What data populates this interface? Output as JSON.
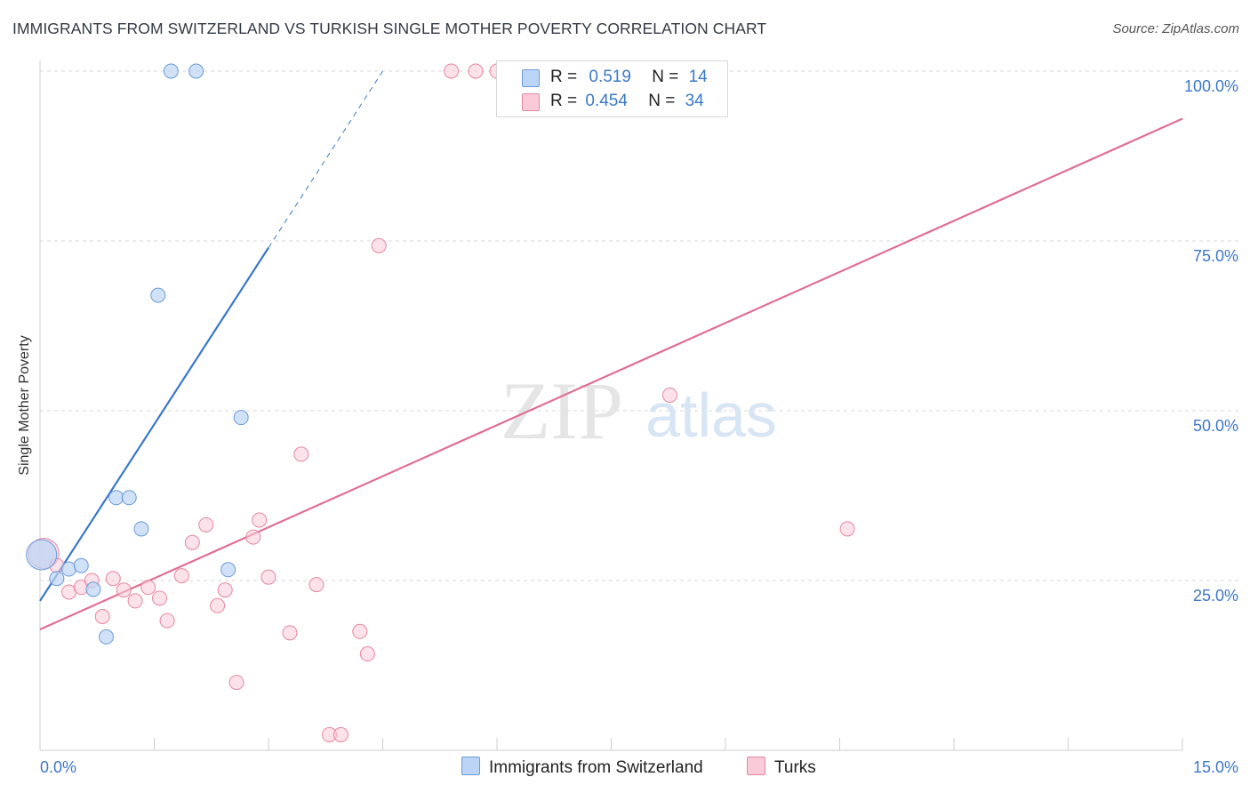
{
  "header": {
    "title": "IMMIGRANTS FROM SWITZERLAND VS TURKISH SINGLE MOTHER POVERTY CORRELATION CHART",
    "source": "Source: ZipAtlas.com"
  },
  "legend": {
    "rows": [
      {
        "r_label": "R =",
        "r_value": "0.519",
        "n_label": "N =",
        "n_value": "14"
      },
      {
        "r_label": "R =",
        "r_value": "0.454",
        "n_label": "N =",
        "n_value": "34"
      }
    ]
  },
  "bottom_legend": {
    "items": [
      {
        "label": "Immigrants from Switzerland"
      },
      {
        "label": "Turks"
      }
    ]
  },
  "colors": {
    "swiss_fill": "#bcd4f5",
    "swiss_stroke": "#6a9bd8",
    "swiss_line": "#3a78c8",
    "turks_fill": "#f9cad8",
    "turks_stroke": "#e8869f",
    "turks_line": "#e06f94",
    "axis_text": "#3c78c8",
    "grid": "#d8d8d8"
  },
  "chart_data": {
    "type": "scatter",
    "title": "IMMIGRANTS FROM SWITZERLAND VS TURKISH SINGLE MOTHER POVERTY CORRELATION CHART",
    "xlabel": "",
    "ylabel": "Single Mother Poverty",
    "xlim": [
      0,
      15
    ],
    "ylim": [
      0,
      100
    ],
    "x_tick_labels": [
      "0.0%",
      "15.0%"
    ],
    "y_tick_labels": [
      "25.0%",
      "50.0%",
      "75.0%",
      "100.0%"
    ],
    "y_ticks": [
      25,
      50,
      75,
      100
    ],
    "watermark": {
      "zip": "ZIP",
      "atlas": "atlas"
    },
    "series": [
      {
        "name": "Immigrants from Switzerland",
        "r": 0.519,
        "n": 14,
        "points": [
          {
            "x": 0.02,
            "y": 28.8,
            "big": true
          },
          {
            "x": 0.22,
            "y": 25.3
          },
          {
            "x": 0.38,
            "y": 26.7
          },
          {
            "x": 0.54,
            "y": 27.2
          },
          {
            "x": 0.7,
            "y": 23.7
          },
          {
            "x": 0.87,
            "y": 16.7
          },
          {
            "x": 1.0,
            "y": 37.2
          },
          {
            "x": 1.17,
            "y": 37.2
          },
          {
            "x": 1.33,
            "y": 32.6
          },
          {
            "x": 1.55,
            "y": 67.0
          },
          {
            "x": 1.72,
            "y": 100.0
          },
          {
            "x": 2.05,
            "y": 100.0
          },
          {
            "x": 2.47,
            "y": 26.6
          },
          {
            "x": 2.64,
            "y": 49.0
          }
        ],
        "trend": {
          "x0": 0.0,
          "y0": 22.0,
          "x1": 3.0,
          "y1": 74.0,
          "x_dash_end": 4.5,
          "y_dash_end": 100.0
        }
      },
      {
        "name": "Turks",
        "r": 0.454,
        "n": 34,
        "points": [
          {
            "x": 0.05,
            "y": 29.0,
            "big": true
          },
          {
            "x": 0.22,
            "y": 27.2
          },
          {
            "x": 0.38,
            "y": 23.3
          },
          {
            "x": 0.54,
            "y": 24.0
          },
          {
            "x": 0.68,
            "y": 25.0
          },
          {
            "x": 0.82,
            "y": 19.7
          },
          {
            "x": 0.96,
            "y": 25.3
          },
          {
            "x": 1.1,
            "y": 23.6
          },
          {
            "x": 1.25,
            "y": 22.0
          },
          {
            "x": 1.42,
            "y": 24.0
          },
          {
            "x": 1.57,
            "y": 22.4
          },
          {
            "x": 1.67,
            "y": 19.1
          },
          {
            "x": 1.86,
            "y": 25.7
          },
          {
            "x": 2.0,
            "y": 30.6
          },
          {
            "x": 2.18,
            "y": 33.2
          },
          {
            "x": 2.33,
            "y": 21.3
          },
          {
            "x": 2.43,
            "y": 23.6
          },
          {
            "x": 2.58,
            "y": 10.0
          },
          {
            "x": 2.8,
            "y": 31.4
          },
          {
            "x": 2.88,
            "y": 33.9
          },
          {
            "x": 3.0,
            "y": 25.5
          },
          {
            "x": 3.28,
            "y": 17.3
          },
          {
            "x": 3.43,
            "y": 43.6
          },
          {
            "x": 3.63,
            "y": 24.4
          },
          {
            "x": 3.8,
            "y": 2.3
          },
          {
            "x": 3.95,
            "y": 2.3
          },
          {
            "x": 4.2,
            "y": 17.5
          },
          {
            "x": 4.3,
            "y": 14.2
          },
          {
            "x": 4.45,
            "y": 74.3
          },
          {
            "x": 5.4,
            "y": 100.0
          },
          {
            "x": 5.72,
            "y": 100.0
          },
          {
            "x": 6.0,
            "y": 100.0
          },
          {
            "x": 8.27,
            "y": 52.3
          },
          {
            "x": 10.6,
            "y": 32.6
          }
        ],
        "trend": {
          "x0": 0.0,
          "y0": 17.8,
          "x1": 15.0,
          "y1": 93.0
        }
      }
    ]
  }
}
